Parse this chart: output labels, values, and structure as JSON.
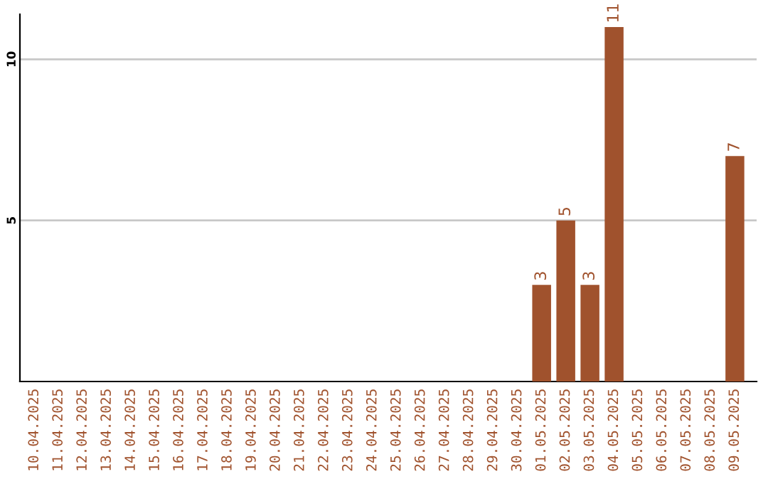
{
  "chart_data": {
    "type": "bar",
    "categories": [
      "10.04.2025",
      "11.04.2025",
      "12.04.2025",
      "13.04.2025",
      "14.04.2025",
      "15.04.2025",
      "16.04.2025",
      "17.04.2025",
      "18.04.2025",
      "19.04.2025",
      "20.04.2025",
      "21.04.2025",
      "22.04.2025",
      "23.04.2025",
      "24.04.2025",
      "25.04.2025",
      "26.04.2025",
      "27.04.2025",
      "28.04.2025",
      "29.04.2025",
      "30.04.2025",
      "01.05.2025",
      "02.05.2025",
      "03.05.2025",
      "04.05.2025",
      "05.05.2025",
      "06.05.2025",
      "07.05.2025",
      "08.05.2025",
      "09.05.2025"
    ],
    "values": [
      0,
      0,
      0,
      0,
      0,
      0,
      0,
      0,
      0,
      0,
      0,
      0,
      0,
      0,
      0,
      0,
      0,
      0,
      0,
      0,
      0,
      3,
      5,
      3,
      11,
      0,
      0,
      0,
      0,
      7
    ],
    "value_labels": [
      null,
      null,
      null,
      null,
      null,
      null,
      null,
      null,
      null,
      null,
      null,
      null,
      null,
      null,
      null,
      null,
      null,
      null,
      null,
      null,
      null,
      "3",
      "5",
      "3",
      "11",
      null,
      null,
      null,
      null,
      "7"
    ],
    "color": "#a0522d",
    "ylim": [
      0,
      11.4
    ],
    "yticks": [
      5,
      10
    ],
    "grid": "y"
  }
}
